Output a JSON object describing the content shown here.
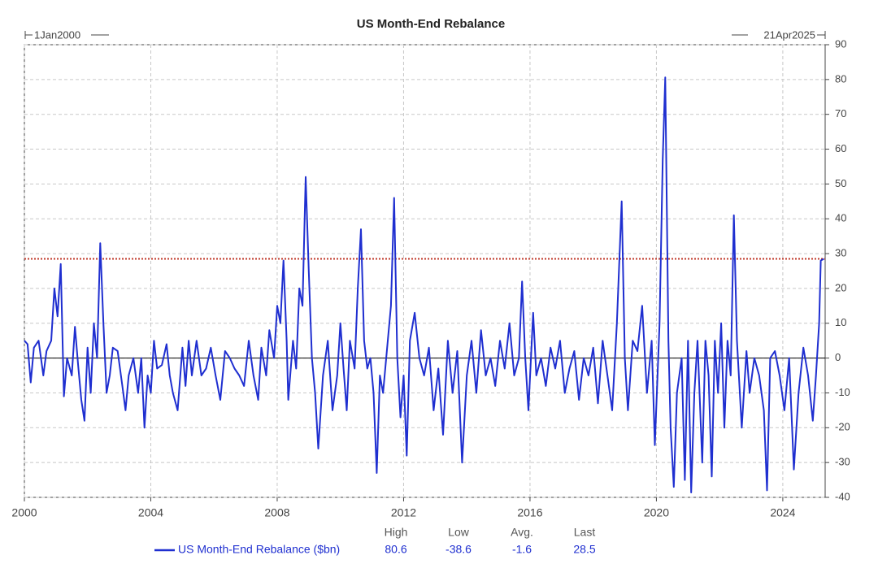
{
  "chart_data": {
    "type": "line",
    "title": "US Month-End Rebalance",
    "start_label": "1Jan2000",
    "end_label": "21Apr2025",
    "x": [
      2000.0,
      2000.1,
      2000.2,
      2000.3,
      2000.45,
      2000.6,
      2000.7,
      2000.85,
      2000.95,
      2001.05,
      2001.15,
      2001.25,
      2001.35,
      2001.5,
      2001.6,
      2001.7,
      2001.8,
      2001.9,
      2002.0,
      2002.1,
      2002.2,
      2002.3,
      2002.4,
      2002.5,
      2002.6,
      2002.7,
      2002.8,
      2002.95,
      2003.1,
      2003.2,
      2003.3,
      2003.45,
      2003.6,
      2003.7,
      2003.8,
      2003.9,
      2004.0,
      2004.1,
      2004.2,
      2004.35,
      2004.5,
      2004.6,
      2004.7,
      2004.85,
      2005.0,
      2005.1,
      2005.2,
      2005.3,
      2005.45,
      2005.6,
      2005.75,
      2005.9,
      2006.05,
      2006.2,
      2006.35,
      2006.5,
      2006.65,
      2006.8,
      2006.95,
      2007.1,
      2007.25,
      2007.4,
      2007.5,
      2007.65,
      2007.75,
      2007.9,
      2008.0,
      2008.1,
      2008.2,
      2008.3,
      2008.35,
      2008.5,
      2008.6,
      2008.7,
      2008.8,
      2008.9,
      2009.0,
      2009.1,
      2009.2,
      2009.3,
      2009.45,
      2009.6,
      2009.75,
      2009.9,
      2010.0,
      2010.1,
      2010.2,
      2010.3,
      2010.45,
      2010.55,
      2010.65,
      2010.75,
      2010.85,
      2010.95,
      2011.05,
      2011.15,
      2011.25,
      2011.35,
      2011.5,
      2011.6,
      2011.7,
      2011.8,
      2011.9,
      2012.0,
      2012.1,
      2012.2,
      2012.35,
      2012.5,
      2012.65,
      2012.8,
      2012.95,
      2013.1,
      2013.25,
      2013.4,
      2013.55,
      2013.7,
      2013.85,
      2014.0,
      2014.15,
      2014.3,
      2014.45,
      2014.6,
      2014.75,
      2014.9,
      2015.05,
      2015.2,
      2015.35,
      2015.5,
      2015.65,
      2015.75,
      2015.85,
      2015.95,
      2016.1,
      2016.2,
      2016.35,
      2016.5,
      2016.65,
      2016.8,
      2016.95,
      2017.1,
      2017.25,
      2017.4,
      2017.55,
      2017.7,
      2017.85,
      2018.0,
      2018.15,
      2018.3,
      2018.45,
      2018.6,
      2018.75,
      2018.9,
      2019.0,
      2019.1,
      2019.25,
      2019.4,
      2019.55,
      2019.7,
      2019.85,
      2019.95,
      2020.1,
      2020.2,
      2020.28,
      2020.38,
      2020.45,
      2020.55,
      2020.65,
      2020.8,
      2020.9,
      2021.0,
      2021.1,
      2021.2,
      2021.3,
      2021.45,
      2021.55,
      2021.65,
      2021.75,
      2021.85,
      2021.95,
      2022.05,
      2022.15,
      2022.25,
      2022.35,
      2022.45,
      2022.55,
      2022.7,
      2022.85,
      2022.95,
      2023.1,
      2023.25,
      2023.4,
      2023.5,
      2023.6,
      2023.75,
      2023.9,
      2024.05,
      2024.2,
      2024.35,
      2024.5,
      2024.65,
      2024.8,
      2024.95,
      2025.05,
      2025.15,
      2025.2,
      2025.3
    ],
    "series": [
      {
        "name": "US Month-End Rebalance ($bn)",
        "color": "#1f2fd0",
        "values": [
          5,
          4,
          -7,
          3,
          5,
          -5,
          2,
          5,
          20,
          12,
          27,
          -11,
          0,
          -5,
          9,
          -2,
          -12,
          -18,
          3,
          -10,
          10,
          0,
          33,
          10,
          -10,
          -5,
          3,
          2,
          -8,
          -15,
          -5,
          0,
          -10,
          0,
          -20,
          -5,
          -10,
          5,
          -3,
          -2,
          4,
          -5,
          -10,
          -15,
          3,
          -8,
          5,
          -5,
          5,
          -5,
          -3,
          3,
          -5,
          -12,
          2,
          0,
          -3,
          -5,
          -8,
          5,
          -5,
          -12,
          3,
          -5,
          8,
          0,
          15,
          10,
          28,
          5,
          -12,
          5,
          -3,
          20,
          15,
          52,
          25,
          0,
          -10,
          -26,
          -5,
          5,
          -15,
          -5,
          10,
          -3,
          -15,
          5,
          -3,
          20,
          37,
          5,
          -3,
          0,
          -10,
          -33,
          -5,
          -10,
          5,
          15,
          46,
          0,
          -17,
          -5,
          -28,
          5,
          13,
          0,
          -5,
          3,
          -15,
          -3,
          -22,
          5,
          -10,
          2,
          -30,
          -5,
          5,
          -10,
          8,
          -5,
          0,
          -8,
          5,
          -3,
          10,
          -5,
          0,
          22,
          0,
          -15,
          13,
          -5,
          0,
          -8,
          3,
          -3,
          5,
          -10,
          -3,
          2,
          -12,
          0,
          -5,
          3,
          -13,
          5,
          -5,
          -15,
          10,
          45,
          0,
          -15,
          5,
          2,
          15,
          -10,
          5,
          -25,
          10,
          57,
          80.6,
          5,
          -20,
          -37,
          -10,
          0,
          -35,
          5,
          -38.6,
          -10,
          5,
          -30,
          5,
          -5,
          -34,
          5,
          -10,
          10,
          -20,
          5,
          -5,
          41,
          5,
          -20,
          2,
          -10,
          0,
          -5,
          -15,
          -38,
          0,
          2,
          -5,
          -15,
          0,
          -32,
          -10,
          3,
          -5,
          -18,
          -5,
          10,
          28,
          28.5
        ]
      }
    ],
    "xlim": [
      2000,
      2025.34
    ],
    "xticks": [
      2000,
      2004,
      2008,
      2012,
      2016,
      2020,
      2024
    ],
    "ylim": [
      -40,
      90
    ],
    "yticks": [
      -40,
      -30,
      -20,
      -10,
      0,
      10,
      20,
      30,
      40,
      50,
      60,
      70,
      80,
      90
    ],
    "grid": true,
    "last_value_line": true,
    "stats": [
      {
        "label": "High",
        "value": 80.6
      },
      {
        "label": "Low",
        "value": -38.6
      },
      {
        "label": "Avg.",
        "value": -1.6
      },
      {
        "label": "Last",
        "value": 28.5
      }
    ]
  }
}
